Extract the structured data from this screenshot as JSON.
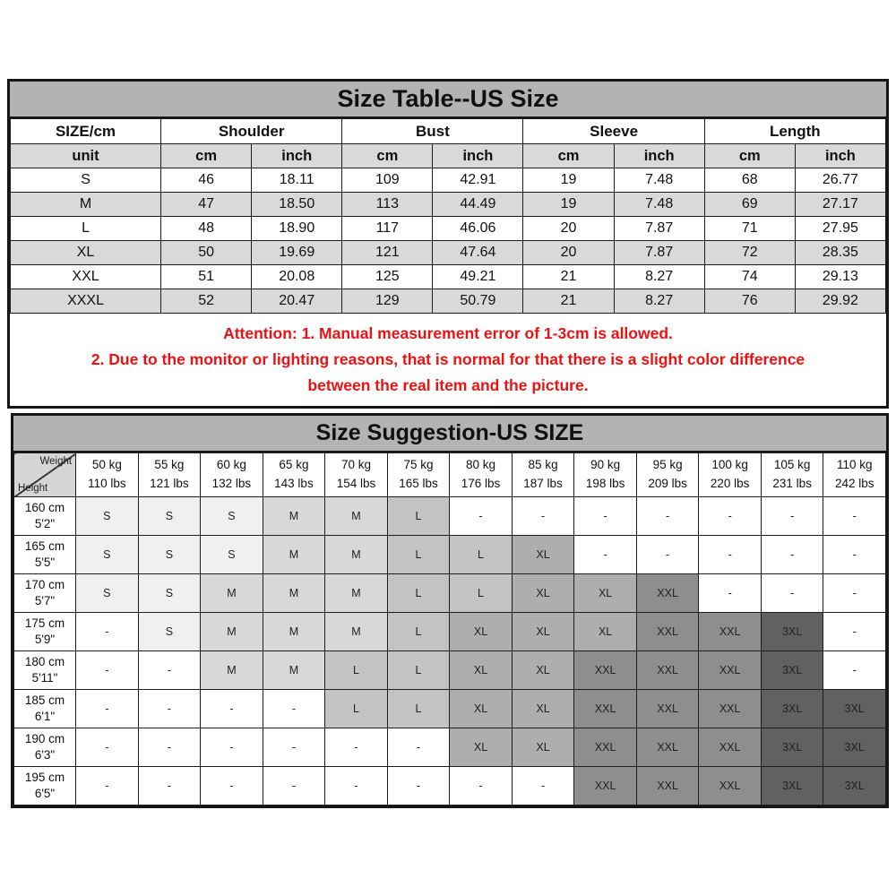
{
  "colors": {
    "title_bar": "#b3b3b3",
    "row_shade": "#d9d9d9",
    "attention": "#ee1111",
    "cells": {
      "S": "#f0f0f0",
      "M": "#d8d8d8",
      "L": "#c3c3c3",
      "XL": "#aeaeae",
      "XXL": "#8e8e8e",
      "3XL": "#616161",
      "-": "#ffffff"
    }
  },
  "chart_data": [
    {
      "type": "table",
      "title": "Size Table--US Size",
      "header_groups": [
        "SIZE/cm",
        "Shoulder",
        "Bust",
        "Sleeve",
        "Length"
      ],
      "unit_row": [
        "unit",
        "cm",
        "inch",
        "cm",
        "inch",
        "cm",
        "inch",
        "cm",
        "inch"
      ],
      "rows": [
        {
          "size": "S",
          "values": [
            "46",
            "18.11",
            "109",
            "42.91",
            "19",
            "7.48",
            "68",
            "26.77"
          ]
        },
        {
          "size": "M",
          "values": [
            "47",
            "18.50",
            "113",
            "44.49",
            "19",
            "7.48",
            "69",
            "27.17"
          ]
        },
        {
          "size": "L",
          "values": [
            "48",
            "18.90",
            "117",
            "46.06",
            "20",
            "7.87",
            "71",
            "27.95"
          ]
        },
        {
          "size": "XL",
          "values": [
            "50",
            "19.69",
            "121",
            "47.64",
            "20",
            "7.87",
            "72",
            "28.35"
          ]
        },
        {
          "size": "XXL",
          "values": [
            "51",
            "20.08",
            "125",
            "49.21",
            "21",
            "8.27",
            "74",
            "29.13"
          ]
        },
        {
          "size": "XXXL",
          "values": [
            "52",
            "20.47",
            "129",
            "50.79",
            "21",
            "8.27",
            "76",
            "29.92"
          ]
        }
      ],
      "attention": [
        "Attention:  1. Manual measurement error of 1-3cm is allowed.",
        "2. Due to the monitor or lighting reasons, that is normal for that there is a slight color difference",
        "between the real item and the picture."
      ]
    },
    {
      "type": "table",
      "title": "Size Suggestion-US SIZE",
      "corner": {
        "top": "Weight",
        "bottom": "Height"
      },
      "weight_headers": [
        {
          "kg": "50 kg",
          "lbs": "110 lbs"
        },
        {
          "kg": "55 kg",
          "lbs": "121 lbs"
        },
        {
          "kg": "60 kg",
          "lbs": "132 lbs"
        },
        {
          "kg": "65 kg",
          "lbs": "143 lbs"
        },
        {
          "kg": "70 kg",
          "lbs": "154 lbs"
        },
        {
          "kg": "75 kg",
          "lbs": "165 lbs"
        },
        {
          "kg": "80 kg",
          "lbs": "176 lbs"
        },
        {
          "kg": "85 kg",
          "lbs": "187 lbs"
        },
        {
          "kg": "90 kg",
          "lbs": "198 lbs"
        },
        {
          "kg": "95 kg",
          "lbs": "209 lbs"
        },
        {
          "kg": "100 kg",
          "lbs": "220 lbs"
        },
        {
          "kg": "105 kg",
          "lbs": "231 lbs"
        },
        {
          "kg": "110 kg",
          "lbs": "242 lbs"
        }
      ],
      "rows": [
        {
          "height_cm": "160 cm",
          "height_ft": "5'2\"",
          "cells": [
            "S",
            "S",
            "S",
            "M",
            "M",
            "L",
            "-",
            "-",
            "-",
            "-",
            "-",
            "-",
            "-"
          ]
        },
        {
          "height_cm": "165 cm",
          "height_ft": "5'5\"",
          "cells": [
            "S",
            "S",
            "S",
            "M",
            "M",
            "L",
            "L",
            "XL",
            "-",
            "-",
            "-",
            "-",
            "-"
          ]
        },
        {
          "height_cm": "170 cm",
          "height_ft": "5'7\"",
          "cells": [
            "S",
            "S",
            "M",
            "M",
            "M",
            "L",
            "L",
            "XL",
            "XL",
            "XXL",
            "-",
            "-",
            "-"
          ]
        },
        {
          "height_cm": "175 cm",
          "height_ft": "5'9\"",
          "cells": [
            "-",
            "S",
            "M",
            "M",
            "M",
            "L",
            "XL",
            "XL",
            "XL",
            "XXL",
            "XXL",
            "3XL",
            "-"
          ]
        },
        {
          "height_cm": "180 cm",
          "height_ft": "5'11\"",
          "cells": [
            "-",
            "-",
            "M",
            "M",
            "L",
            "L",
            "XL",
            "XL",
            "XXL",
            "XXL",
            "XXL",
            "3XL",
            "-"
          ]
        },
        {
          "height_cm": "185 cm",
          "height_ft": "6'1\"",
          "cells": [
            "-",
            "-",
            "-",
            "-",
            "L",
            "L",
            "XL",
            "XL",
            "XXL",
            "XXL",
            "XXL",
            "3XL",
            "3XL"
          ]
        },
        {
          "height_cm": "190 cm",
          "height_ft": "6'3\"",
          "cells": [
            "-",
            "-",
            "-",
            "-",
            "-",
            "-",
            "XL",
            "XL",
            "XXL",
            "XXL",
            "XXL",
            "3XL",
            "3XL"
          ]
        },
        {
          "height_cm": "195 cm",
          "height_ft": "6'5\"",
          "cells": [
            "-",
            "-",
            "-",
            "-",
            "-",
            "-",
            "-",
            "-",
            "XXL",
            "XXL",
            "XXL",
            "3XL",
            "3XL"
          ]
        }
      ]
    }
  ]
}
